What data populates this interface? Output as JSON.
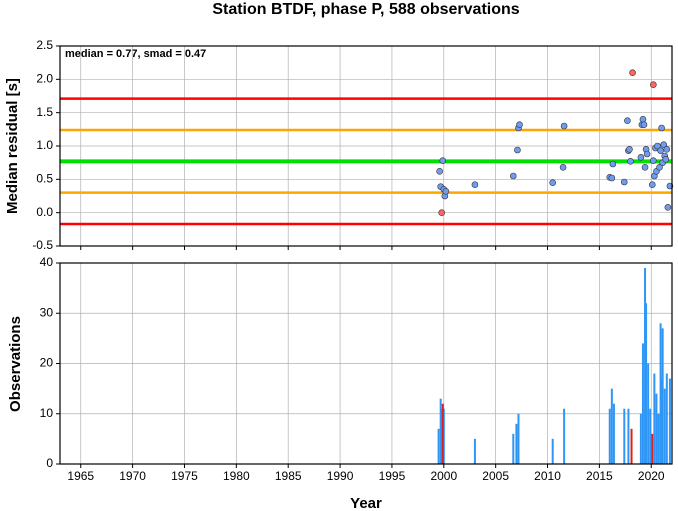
{
  "chart_data": [
    {
      "type": "scatter",
      "title": "Station BTDF, phase P, 588 observations",
      "ylabel": "Median residual [s]",
      "annotation": "median = 0.77, smad = 0.47",
      "xlim": [
        1963,
        2022
      ],
      "xticks": [
        1965,
        1970,
        1975,
        1980,
        1985,
        1990,
        1995,
        2000,
        2005,
        2010,
        2015,
        2020
      ],
      "ylim": [
        -0.5,
        2.5
      ],
      "yticks": [
        -0.5,
        {
          "value": 0,
          "label": "0.0"
        },
        0.5,
        {
          "value": 1,
          "label": "1.0"
        },
        1.5,
        {
          "value": 2,
          "label": "2.0"
        },
        2.5
      ],
      "grid": true,
      "hlines": [
        {
          "value": 1.71,
          "color": "#ff0000"
        },
        {
          "value": 1.24,
          "color": "#ffa500"
        },
        {
          "value": 0.77,
          "color": "#00e000"
        },
        {
          "value": 0.3,
          "color": "#ffa500"
        },
        {
          "value": -0.17,
          "color": "#ff0000"
        }
      ],
      "series": [
        {
          "color": "#6f9cf0",
          "x": [
            1999.6,
            1999.7,
            1999.9,
            2000.0,
            2000.1,
            2000.2,
            2003.0,
            2006.7,
            2007.1,
            2007.2,
            2007.3,
            2010.5,
            2011.5,
            2011.6,
            2016.0,
            2016.2,
            2016.3,
            2017.4,
            2017.7,
            2017.8,
            2017.9,
            2018.0,
            2019.0,
            2019.1,
            2019.2,
            2019.3,
            2019.4,
            2019.5,
            2019.6,
            2020.1,
            2020.2,
            2020.3,
            2020.4,
            2020.5,
            2020.6,
            2020.8,
            2020.9,
            2021.0,
            2021.1,
            2021.2,
            2021.3,
            2021.4,
            2021.5,
            2021.6,
            2021.8
          ],
          "values": [
            0.62,
            0.39,
            0.78,
            0.35,
            0.25,
            0.32,
            0.42,
            0.55,
            0.94,
            1.27,
            1.32,
            0.45,
            0.68,
            1.3,
            0.53,
            0.52,
            0.73,
            0.46,
            1.38,
            0.93,
            0.95,
            0.77,
            0.83,
            1.32,
            1.4,
            1.32,
            0.68,
            0.95,
            0.88,
            0.42,
            0.78,
            0.55,
            0.97,
            0.62,
            1.0,
            0.68,
            0.93,
            1.27,
            0.75,
            1.02,
            0.85,
            0.8,
            0.95,
            0.08,
            0.4
          ]
        },
        {
          "color": "#ff6464",
          "x": [
            1999.8,
            2018.2,
            2020.2
          ],
          "values": [
            0.0,
            2.1,
            1.92
          ]
        }
      ]
    },
    {
      "type": "bar",
      "xlabel": "Year",
      "ylabel": "Observations",
      "xlim": [
        1963,
        2022
      ],
      "xticks": [
        1965,
        1970,
        1975,
        1980,
        1985,
        1990,
        1995,
        2000,
        2005,
        2010,
        2015,
        2020
      ],
      "ylim": [
        0,
        40
      ],
      "yticks": [
        0,
        10,
        20,
        30,
        40
      ],
      "grid": true,
      "series": [
        {
          "color": "#2f96f5",
          "x": [
            1999.5,
            1999.7,
            1999.8,
            2000.0,
            2003.0,
            2006.7,
            2007.0,
            2007.2,
            2010.5,
            2011.6,
            2016.0,
            2016.2,
            2016.4,
            2017.4,
            2017.8,
            2019.0,
            2019.2,
            2019.4,
            2019.5,
            2019.7,
            2019.9,
            2020.3,
            2020.5,
            2020.7,
            2020.9,
            2021.0,
            2021.1,
            2021.3,
            2021.5,
            2021.8
          ],
          "values": [
            7,
            13,
            11,
            11,
            5,
            6,
            8,
            10,
            5,
            11,
            11,
            15,
            12,
            11,
            11,
            10,
            24,
            39,
            32,
            20,
            11,
            18,
            14,
            10,
            28,
            17,
            27,
            15,
            18,
            17
          ]
        },
        {
          "color": "#e02020",
          "x": [
            1999.9,
            2018.1,
            2020.1
          ],
          "values": [
            12,
            7,
            6
          ]
        }
      ]
    }
  ]
}
